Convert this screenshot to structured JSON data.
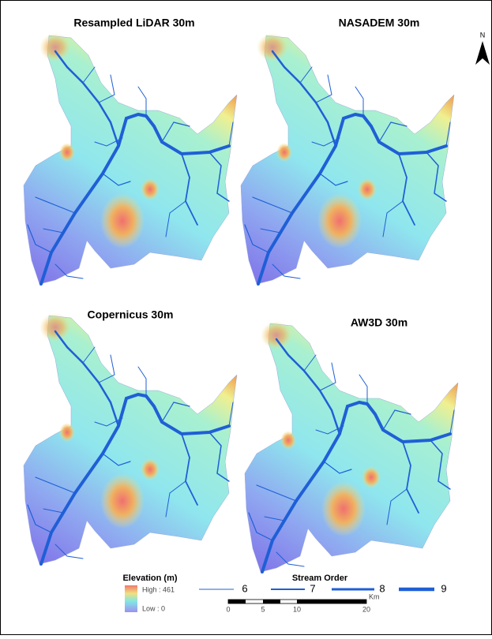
{
  "panels": [
    {
      "title": "Resampled LiDAR 30m"
    },
    {
      "title": "NASADEM 30m"
    },
    {
      "title": "Copernicus 30m"
    },
    {
      "title": "AW3D 30m"
    }
  ],
  "north_arrow": "N",
  "legend": {
    "elevation": {
      "title": "Elevation (m)",
      "high": "High : 461",
      "low": "Low : 0"
    },
    "stream_order": {
      "title": "Stream Order",
      "orders": [
        "6",
        "7",
        "8",
        "9"
      ]
    }
  },
  "scale_bar": {
    "unit": "Km",
    "ticks": [
      "0",
      "5",
      "10",
      "20"
    ]
  }
}
